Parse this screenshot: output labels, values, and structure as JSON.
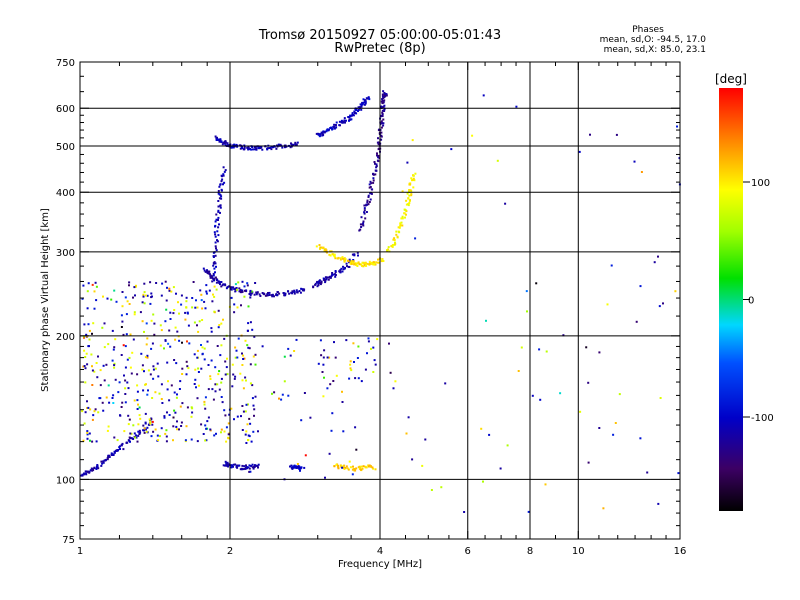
{
  "chart_data": {
    "type": "scatter",
    "title": "Tromsø 20150927 05:00:00-05:01:43",
    "subtitle": "RwPretec (8p)",
    "xlabel": "Frequency [MHz]",
    "ylabel": "Stationary phase Virtual Height [km]",
    "x_scale": "log",
    "y_scale": "log",
    "xlim": [
      1,
      16
    ],
    "ylim": [
      75,
      750
    ],
    "x_ticks": [
      1,
      2,
      4,
      6,
      8,
      10,
      16
    ],
    "y_ticks": [
      75,
      100,
      200,
      300,
      400,
      500,
      600,
      750
    ],
    "x_grid": [
      2,
      4,
      6,
      8,
      10
    ],
    "y_grid": [
      100,
      200,
      300,
      400,
      500,
      600
    ],
    "grid": true,
    "phase_stats": {
      "header": "Phases",
      "line_o": "mean, sd,O: -94.5, 17.0",
      "line_x": "mean, sd,X:  85.0, 23.1"
    },
    "colorbar": {
      "label": "[deg]",
      "range": [
        -180,
        180
      ],
      "ticks": [
        100,
        0,
        -100
      ]
    },
    "traces": [
      {
        "f": [
          1.88,
          1.92,
          1.96,
          2.02,
          2.1,
          2.2,
          2.3,
          2.45,
          2.6,
          2.75
        ],
        "h": [
          525,
          510,
          505,
          500,
          497,
          495,
          495,
          497,
          500,
          505
        ],
        "phase": -110
      },
      {
        "f": [
          3.0,
          3.1,
          3.2,
          3.35,
          3.5,
          3.6,
          3.72,
          3.8
        ],
        "h": [
          525,
          535,
          545,
          560,
          575,
          595,
          615,
          635
        ],
        "phase": -105
      },
      {
        "f": [
          1.78,
          1.84,
          1.9,
          2.0,
          2.1,
          2.25,
          2.4,
          2.55,
          2.7,
          2.85
        ],
        "h": [
          276,
          266,
          258,
          252,
          248,
          245,
          244,
          245,
          247,
          250
        ],
        "phase": -120
      },
      {
        "f": [
          2.95,
          3.05,
          3.15,
          3.3,
          3.45,
          3.6
        ],
        "h": [
          255,
          260,
          265,
          272,
          282,
          300
        ],
        "phase": -115
      },
      {
        "f": [
          3.65,
          3.75,
          3.82,
          3.9,
          3.96,
          4.0,
          4.03,
          4.05,
          4.08,
          4.1
        ],
        "h": [
          330,
          370,
          400,
          440,
          480,
          520,
          560,
          600,
          630,
          650
        ],
        "phase": -125
      },
      {
        "f": [
          1.85,
          1.87,
          1.88,
          1.9,
          1.92,
          1.95
        ],
        "h": [
          260,
          290,
          330,
          370,
          410,
          450
        ],
        "phase": -110
      },
      {
        "f": [
          3.0,
          3.15,
          3.3,
          3.45,
          3.6,
          3.75,
          3.9,
          4.05
        ],
        "h": [
          310,
          300,
          292,
          286,
          283,
          282,
          284,
          290
        ],
        "phase": 105
      },
      {
        "f": [
          4.15,
          4.3,
          4.45,
          4.55,
          4.62,
          4.68
        ],
        "h": [
          300,
          320,
          350,
          380,
          410,
          440
        ],
        "phase": 95
      },
      {
        "f": [
          1.01,
          1.05,
          1.1,
          1.15,
          1.2,
          1.28,
          1.35,
          1.4
        ],
        "h": [
          102,
          104,
          108,
          112,
          116,
          122,
          128,
          135
        ],
        "phase": -115
      },
      {
        "f": [
          1.95,
          2.0,
          2.1,
          2.2,
          2.3
        ],
        "h": [
          108,
          107,
          106,
          106,
          107
        ],
        "phase": -110
      },
      {
        "f": [
          2.65,
          2.72,
          2.8
        ],
        "h": [
          106,
          106,
          105
        ],
        "phase": -100
      },
      {
        "f": [
          3.25,
          3.4,
          3.6,
          3.75,
          3.9
        ],
        "h": [
          107,
          106,
          105,
          106,
          106
        ],
        "phase": 110
      }
    ],
    "scatter_clusters": [
      {
        "f_range": [
          1.0,
          2.25
        ],
        "h_range": [
          120,
          260
        ],
        "n": 520,
        "phase_mix": "mixed",
        "seed": 11
      },
      {
        "f_range": [
          3.0,
          4.3
        ],
        "h_range": [
          150,
          200
        ],
        "n": 40,
        "phase_mix": "mixed",
        "seed": 23
      },
      {
        "f_range": [
          2.1,
          3.9
        ],
        "h_range": [
          100,
          200
        ],
        "n": 45,
        "phase_mix": "mixed",
        "seed": 37
      },
      {
        "f_range": [
          4.4,
          16.0
        ],
        "h_range": [
          85,
          650
        ],
        "n": 70,
        "phase_mix": "mixed",
        "seed": 51
      }
    ]
  }
}
